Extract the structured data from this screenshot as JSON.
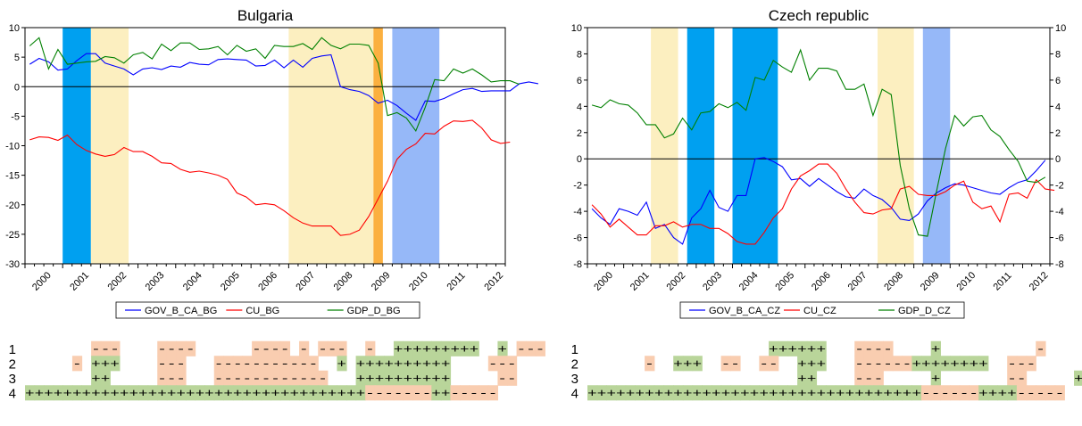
{
  "colors": {
    "gov": "#0000ff",
    "cu": "#ff0000",
    "gdp": "#008000",
    "band_yellow": "#fcefc0",
    "band_blue": "#00a0f0",
    "band_lightblue": "#96b8f8",
    "band_orange": "#fbb040",
    "cell_plus": "#b9d59a",
    "cell_minus": "#f9cdb0"
  },
  "chart_data": [
    {
      "type": "line",
      "title": "Bulgaria",
      "x_start": 2000.0,
      "x_end": 2012.75,
      "ylim": [
        -30,
        10
      ],
      "yticks": [
        10,
        5,
        0,
        -5,
        -10,
        -15,
        -20,
        -25,
        -30
      ],
      "right_axis": false,
      "xtick_labels": [
        "2000",
        "2001",
        "2002",
        "2003",
        "2004",
        "2005",
        "2006",
        "2007",
        "2008",
        "2009",
        "2010",
        "2011",
        "2012"
      ],
      "bands": [
        {
          "from": 2001.0,
          "to": 2001.75,
          "color": "band_blue"
        },
        {
          "from": 2001.75,
          "to": 2002.75,
          "color": "band_yellow"
        },
        {
          "from": 2007.0,
          "to": 2009.25,
          "color": "band_yellow"
        },
        {
          "from": 2009.25,
          "to": 2009.5,
          "color": "band_orange"
        },
        {
          "from": 2009.75,
          "to": 2011.0,
          "color": "band_lightblue"
        }
      ],
      "series": [
        {
          "name": "GOV_B_CA_BG",
          "color": "gov",
          "values": [
            3.8,
            4.8,
            4.2,
            2.8,
            3.0,
            4.4,
            5.6,
            5.6,
            4.0,
            3.5,
            3.0,
            2.0,
            3.0,
            3.2,
            2.9,
            3.5,
            3.3,
            4.1,
            3.8,
            3.7,
            4.6,
            4.7,
            4.6,
            4.5,
            3.5,
            3.6,
            4.5,
            3.2,
            4.5,
            3.3,
            4.8,
            5.2,
            5.4,
            0.0,
            -0.5,
            -0.8,
            -1.5,
            -2.8,
            -2.3,
            -3.2,
            -4.5,
            -5.7,
            -2.4,
            -2.5,
            -2.0,
            -1.2,
            -0.5,
            -0.3,
            -0.8,
            -0.7,
            -0.7,
            -0.7,
            0.5,
            0.8,
            0.5
          ]
        },
        {
          "name": "CU_BG",
          "color": "cu",
          "values": [
            -9.0,
            -8.5,
            -8.6,
            -9.1,
            -8.2,
            -9.8,
            -10.8,
            -11.4,
            -11.8,
            -11.5,
            -10.3,
            -11.0,
            -11.0,
            -11.8,
            -12.9,
            -13.0,
            -14.0,
            -14.5,
            -14.3,
            -14.6,
            -15.0,
            -15.7,
            -18.0,
            -18.7,
            -20.0,
            -19.8,
            -20.0,
            -21.0,
            -22.2,
            -23.1,
            -23.6,
            -23.6,
            -23.6,
            -25.2,
            -25.0,
            -24.3,
            -22.0,
            -19.0,
            -16.0,
            -12.3,
            -10.6,
            -9.7,
            -7.9,
            -8.0,
            -6.7,
            -5.8,
            -5.9,
            -5.7,
            -7.0,
            -9.0,
            -9.6,
            -9.4
          ]
        },
        {
          "name": "GDP_D_BG",
          "color": "gdp",
          "values": [
            6.9,
            8.3,
            3.0,
            6.3,
            3.8,
            4.0,
            4.2,
            4.3,
            5.1,
            4.9,
            4.0,
            5.4,
            5.8,
            4.7,
            7.2,
            6.1,
            7.4,
            7.4,
            6.3,
            6.4,
            6.8,
            5.4,
            7.0,
            6.0,
            6.4,
            4.8,
            7.0,
            6.8,
            6.8,
            7.3,
            6.3,
            8.3,
            7.0,
            6.4,
            7.2,
            7.2,
            7.0,
            4.0,
            -4.9,
            -4.4,
            -5.3,
            -7.5,
            -3.5,
            1.2,
            1.0,
            3.0,
            2.3,
            3.0,
            2.0,
            0.8,
            1.0,
            1.0,
            0.4
          ]
        }
      ],
      "legend": [
        "GOV_B_CA_BG",
        "CU_BG",
        "GDP_D_BG"
      ],
      "sign_rows": [
        {
          "label": "1",
          "cells": "       ---    ----      ---- - ---  -  +++++++++  + ---"
        },
        {
          "label": "2",
          "cells": "     - +++    ---   -----------  + ++++++++++    ---"
        },
        {
          "label": "3",
          "cells": "       ++     ---   ------------   ++++++++++     --"
        },
        {
          "label": "4",
          "cells": "++++++++++++++++++++++++++++++++++++-------++-----"
        }
      ]
    },
    {
      "type": "line",
      "title": "Czech republic",
      "x_start": 2000.0,
      "x_end": 2012.75,
      "ylim": [
        -8,
        10
      ],
      "yticks": [
        10,
        8,
        6,
        4,
        2,
        0,
        -2,
        -4,
        -6,
        -8
      ],
      "right_axis": true,
      "xtick_labels": [
        "2000",
        "2001",
        "2002",
        "2003",
        "2004",
        "2005",
        "2006",
        "2007",
        "2008",
        "2009",
        "2010",
        "2011",
        "2012"
      ],
      "bands": [
        {
          "from": 2001.75,
          "to": 2002.5,
          "color": "band_yellow"
        },
        {
          "from": 2002.75,
          "to": 2003.5,
          "color": "band_blue"
        },
        {
          "from": 2004.0,
          "to": 2005.25,
          "color": "band_blue"
        },
        {
          "from": 2008.0,
          "to": 2009.0,
          "color": "band_yellow"
        },
        {
          "from": 2009.25,
          "to": 2010.0,
          "color": "band_lightblue"
        }
      ],
      "series": [
        {
          "name": "GOV_B_CA_CZ",
          "color": "gov",
          "values": [
            -3.8,
            -4.5,
            -5.0,
            -3.8,
            -4.0,
            -4.3,
            -3.3,
            -5.3,
            -5.0,
            -6.0,
            -6.5,
            -4.5,
            -3.8,
            -2.4,
            -3.7,
            -4.0,
            -2.8,
            -2.8,
            0.0,
            0.1,
            -0.2,
            -0.6,
            -1.6,
            -1.5,
            -2.1,
            -1.5,
            -2.0,
            -2.5,
            -2.9,
            -3.0,
            -2.3,
            -2.8,
            -3.1,
            -3.7,
            -4.6,
            -4.7,
            -4.2,
            -3.2,
            -2.6,
            -2.2,
            -1.9,
            -2.0,
            -2.2,
            -2.4,
            -2.6,
            -2.7,
            -2.2,
            -1.8,
            -1.6,
            -0.9,
            -0.1
          ]
        },
        {
          "name": "CU_CZ",
          "color": "cu",
          "values": [
            -3.5,
            -4.2,
            -5.2,
            -4.6,
            -5.2,
            -5.8,
            -5.8,
            -5.1,
            -5.1,
            -4.8,
            -5.2,
            -5.0,
            -5.0,
            -5.3,
            -5.3,
            -5.7,
            -6.3,
            -6.5,
            -6.5,
            -5.6,
            -4.5,
            -3.8,
            -2.3,
            -1.3,
            -0.9,
            -0.4,
            -0.4,
            -1.1,
            -2.3,
            -3.3,
            -4.1,
            -4.2,
            -3.9,
            -3.8,
            -2.3,
            -2.1,
            -2.7,
            -2.8,
            -2.8,
            -2.5,
            -2.0,
            -1.7,
            -3.3,
            -3.8,
            -3.6,
            -4.8,
            -2.7,
            -2.6,
            -3.0,
            -1.6,
            -2.3,
            -2.4
          ]
        },
        {
          "name": "GDP_D_CZ",
          "color": "gdp",
          "values": [
            4.1,
            3.9,
            4.5,
            4.2,
            4.1,
            3.5,
            2.6,
            2.6,
            1.6,
            1.9,
            3.1,
            2.2,
            3.5,
            3.6,
            4.2,
            3.9,
            4.3,
            3.7,
            6.2,
            6.0,
            7.5,
            7.0,
            6.6,
            8.3,
            6.0,
            6.9,
            6.9,
            6.7,
            5.3,
            5.3,
            5.7,
            3.3,
            5.3,
            4.9,
            -0.5,
            -3.8,
            -5.8,
            -5.9,
            -2.5,
            0.8,
            3.3,
            2.5,
            3.2,
            3.3,
            2.2,
            1.7,
            0.7,
            -0.2,
            -1.7,
            -1.8,
            -1.4
          ]
        }
      ],
      "legend": [
        "GOV_B_CA_CZ",
        "CU_CZ",
        "GDP_D_CZ"
      ],
      "sign_rows": [
        {
          "label": "1",
          "cells": "                   ++++++   ----    +          -    +"
        },
        {
          "label": "2",
          "cells": "      -  +++  --  --  +++   ------++++++++  ---     +"
        },
        {
          "label": "3",
          "cells": "                      ++    ---     +       --     ++"
        },
        {
          "label": "4",
          "cells": "+++++++++++++++++++++++++++++++++++------++++-----"
        }
      ]
    }
  ]
}
